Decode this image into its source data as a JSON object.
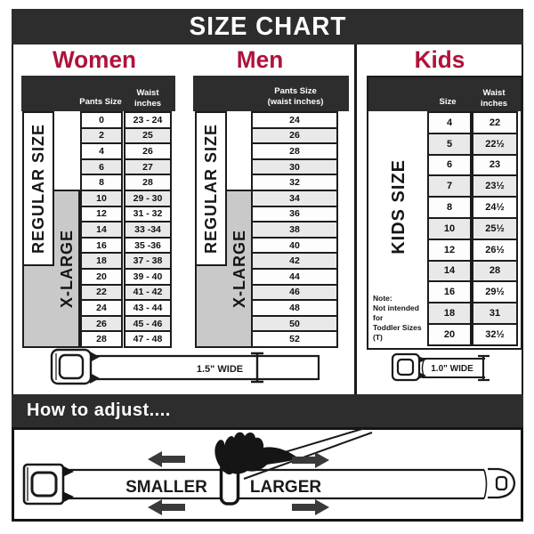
{
  "title": "SIZE CHART",
  "accent_color": "#b0123a",
  "dark_color": "#2d2d2d",
  "columns": {
    "women": {
      "heading": "Women",
      "col1_header": "Pants Size",
      "col2_header_line1": "Waist",
      "col2_header_line2": "inches",
      "regular_label": "REGULAR SIZE",
      "xlarge_label": "X-LARGE",
      "rows": [
        {
          "size": "0",
          "waist": "23 - 24"
        },
        {
          "size": "2",
          "waist": "25"
        },
        {
          "size": "4",
          "waist": "26"
        },
        {
          "size": "6",
          "waist": "27"
        },
        {
          "size": "8",
          "waist": "28"
        },
        {
          "size": "10",
          "waist": "29 - 30"
        },
        {
          "size": "12",
          "waist": "31 - 32"
        },
        {
          "size": "14",
          "waist": "33 -34"
        },
        {
          "size": "16",
          "waist": "35 -36"
        },
        {
          "size": "18",
          "waist": "37 - 38"
        },
        {
          "size": "20",
          "waist": "39 - 40"
        },
        {
          "size": "22",
          "waist": "41 - 42"
        },
        {
          "size": "24",
          "waist": "43 - 44"
        },
        {
          "size": "26",
          "waist": "45 - 46"
        },
        {
          "size": "28",
          "waist": "47 - 48"
        }
      ]
    },
    "men": {
      "heading": "Men",
      "col_header_line1": "Pants Size",
      "col_header_line2": "(waist inches)",
      "regular_label": "REGULAR SIZE",
      "xlarge_label": "X-LARGE",
      "rows": [
        "24",
        "26",
        "28",
        "30",
        "32",
        "34",
        "36",
        "38",
        "40",
        "42",
        "44",
        "46",
        "48",
        "50",
        "52"
      ]
    },
    "kids": {
      "heading": "Kids",
      "col1_header": "Size",
      "col2_header_line1": "Waist",
      "col2_header_line2": "inches",
      "side_label": "KIDS SIZE",
      "note_lines": [
        "Note:",
        "Not intended for",
        "Toddler Sizes (T)"
      ],
      "rows": [
        {
          "size": "4",
          "waist": "22"
        },
        {
          "size": "5",
          "waist": "22½"
        },
        {
          "size": "6",
          "waist": "23"
        },
        {
          "size": "7",
          "waist": "23½"
        },
        {
          "size": "8",
          "waist": "24½"
        },
        {
          "size": "10",
          "waist": "25½"
        },
        {
          "size": "12",
          "waist": "26½"
        },
        {
          "size": "14",
          "waist": "28"
        },
        {
          "size": "16",
          "waist": "29½"
        },
        {
          "size": "18",
          "waist": "31"
        },
        {
          "size": "20",
          "waist": "32½"
        }
      ]
    }
  },
  "belts": {
    "adult_width_label": "1.5\" WIDE",
    "kids_width_label": "1.0\" WIDE"
  },
  "adjust": {
    "heading": "How to adjust....",
    "smaller_label": "SMALLER",
    "larger_label": "LARGER"
  },
  "chart_data": [
    {
      "type": "table",
      "title": "Women belt sizes (1.5\" wide)",
      "columns": [
        "Pants Size",
        "Waist inches"
      ],
      "rows": [
        [
          "0",
          "23 - 24"
        ],
        [
          "2",
          "25"
        ],
        [
          "4",
          "26"
        ],
        [
          "6",
          "27"
        ],
        [
          "8",
          "28"
        ],
        [
          "10",
          "29 - 30"
        ],
        [
          "12",
          "31 - 32"
        ],
        [
          "14",
          "33 -34"
        ],
        [
          "16",
          "35 -36"
        ],
        [
          "18",
          "37 - 38"
        ],
        [
          "20",
          "39 - 40"
        ],
        [
          "22",
          "41 - 42"
        ],
        [
          "24",
          "43 - 44"
        ],
        [
          "26",
          "45 - 46"
        ],
        [
          "28",
          "47 - 48"
        ]
      ],
      "annotations": {
        "regular_size_rows": [
          "0",
          "2",
          "4",
          "6",
          "8",
          "10",
          "12",
          "14",
          "16",
          "18"
        ],
        "x_large_rows": [
          "10",
          "12",
          "14",
          "16",
          "18",
          "20",
          "22",
          "24",
          "26",
          "28"
        ]
      }
    },
    {
      "type": "table",
      "title": "Men belt sizes (1.5\" wide)",
      "columns": [
        "Pants Size (waist inches)"
      ],
      "rows": [
        [
          "24"
        ],
        [
          "26"
        ],
        [
          "28"
        ],
        [
          "30"
        ],
        [
          "32"
        ],
        [
          "34"
        ],
        [
          "36"
        ],
        [
          "38"
        ],
        [
          "40"
        ],
        [
          "42"
        ],
        [
          "44"
        ],
        [
          "46"
        ],
        [
          "48"
        ],
        [
          "50"
        ],
        [
          "52"
        ]
      ],
      "annotations": {
        "regular_size_rows": [
          "24",
          "26",
          "28",
          "30",
          "32",
          "34",
          "36",
          "38",
          "40",
          "42"
        ],
        "x_large_rows": [
          "34",
          "36",
          "38",
          "40",
          "42",
          "44",
          "46",
          "48",
          "50",
          "52"
        ]
      }
    },
    {
      "type": "table",
      "title": "Kids belt sizes (1.0\" wide)",
      "columns": [
        "Size",
        "Waist inches"
      ],
      "rows": [
        [
          "4",
          "22"
        ],
        [
          "5",
          "22½"
        ],
        [
          "6",
          "23"
        ],
        [
          "7",
          "23½"
        ],
        [
          "8",
          "24½"
        ],
        [
          "10",
          "25½"
        ],
        [
          "12",
          "26½"
        ],
        [
          "14",
          "28"
        ],
        [
          "16",
          "29½"
        ],
        [
          "18",
          "31"
        ],
        [
          "20",
          "32½"
        ]
      ],
      "annotations": {
        "note": "Not intended for Toddler Sizes (T)"
      }
    }
  ]
}
